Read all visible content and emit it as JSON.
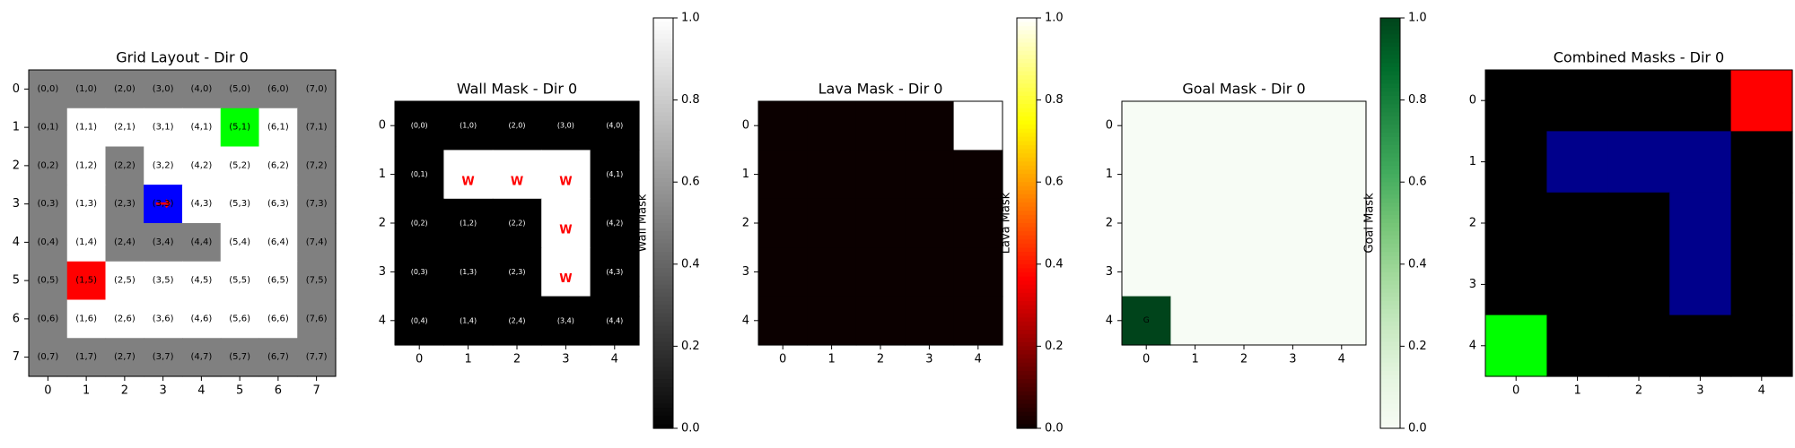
{
  "chart_data": [
    {
      "type": "heatmap",
      "title": "Grid Layout - Dir 0",
      "size": 8,
      "x_ticks": [
        "0",
        "1",
        "2",
        "3",
        "4",
        "5",
        "6",
        "7"
      ],
      "y_ticks": [
        "0",
        "1",
        "2",
        "3",
        "4",
        "5",
        "6",
        "7"
      ],
      "cell_labels": [
        [
          "(0,0)",
          "(1,0)",
          "(2,0)",
          "(3,0)",
          "(4,0)",
          "(5,0)",
          "(6,0)",
          "(7,0)"
        ],
        [
          "(0,1)",
          "(1,1)",
          "(2,1)",
          "(3,1)",
          "(4,1)",
          "(5,1)",
          "(6,1)",
          "(7,1)"
        ],
        [
          "(0,2)",
          "(1,2)",
          "(2,2)",
          "(3,2)",
          "(4,2)",
          "(5,2)",
          "(6,2)",
          "(7,2)"
        ],
        [
          "(0,3)",
          "(1,3)",
          "(2,3)",
          "(3,3)",
          "(4,3)",
          "(5,3)",
          "(6,3)",
          "(7,3)"
        ],
        [
          "(0,4)",
          "(1,4)",
          "(2,4)",
          "(3,4)",
          "(4,4)",
          "(5,4)",
          "(6,4)",
          "(7,4)"
        ],
        [
          "(0,5)",
          "(1,5)",
          "(2,5)",
          "(3,5)",
          "(4,5)",
          "(5,5)",
          "(6,5)",
          "(7,5)"
        ],
        [
          "(0,6)",
          "(1,6)",
          "(2,6)",
          "(3,6)",
          "(4,6)",
          "(5,6)",
          "(6,6)",
          "(7,6)"
        ],
        [
          "(0,7)",
          "(1,7)",
          "(2,7)",
          "(3,7)",
          "(4,7)",
          "(5,7)",
          "(6,7)",
          "(7,7)"
        ]
      ],
      "cells": [
        [
          "wall",
          "wall",
          "wall",
          "wall",
          "wall",
          "wall",
          "wall",
          "wall"
        ],
        [
          "wall",
          "empty",
          "empty",
          "empty",
          "empty",
          "goal",
          "empty",
          "wall"
        ],
        [
          "wall",
          "empty",
          "wall",
          "empty",
          "empty",
          "empty",
          "empty",
          "wall"
        ],
        [
          "wall",
          "empty",
          "wall",
          "agent",
          "empty",
          "empty",
          "empty",
          "wall"
        ],
        [
          "wall",
          "empty",
          "wall",
          "wall",
          "wall",
          "empty",
          "empty",
          "wall"
        ],
        [
          "wall",
          "lava",
          "empty",
          "empty",
          "empty",
          "empty",
          "empty",
          "wall"
        ],
        [
          "wall",
          "empty",
          "empty",
          "empty",
          "empty",
          "empty",
          "empty",
          "wall"
        ],
        [
          "wall",
          "wall",
          "wall",
          "wall",
          "wall",
          "wall",
          "wall",
          "wall"
        ]
      ],
      "agent": {
        "x": 3,
        "y": 3,
        "glyph": "→"
      },
      "colors": {
        "wall": "#808080",
        "empty": "#ffffff",
        "goal": "#00ff00",
        "lava": "#ff0000",
        "agent": "#0000ff",
        "arrow": "#ff0000"
      }
    },
    {
      "type": "heatmap",
      "title": "Wall Mask - Dir 0",
      "size": 5,
      "x_ticks": [
        "0",
        "1",
        "2",
        "3",
        "4"
      ],
      "y_ticks": [
        "0",
        "1",
        "2",
        "3",
        "4"
      ],
      "values": [
        [
          0,
          0,
          0,
          0,
          0
        ],
        [
          0,
          1,
          1,
          1,
          0
        ],
        [
          0,
          0,
          0,
          1,
          0
        ],
        [
          0,
          0,
          0,
          1,
          0
        ],
        [
          0,
          0,
          0,
          0,
          0
        ]
      ],
      "cell_labels": [
        [
          "(0,0)",
          "(1,0)",
          "(2,0)",
          "(3,0)",
          "(4,0)"
        ],
        [
          "(0,1)",
          "W",
          "W",
          "W",
          "(4,1)"
        ],
        [
          "(0,2)",
          "(1,2)",
          "(2,2)",
          "W",
          "(4,2)"
        ],
        [
          "(0,3)",
          "(1,3)",
          "(2,3)",
          "W",
          "(4,3)"
        ],
        [
          "(0,4)",
          "(1,4)",
          "(2,4)",
          "(3,4)",
          "(4,4)"
        ]
      ],
      "colormap": "gray",
      "vmin": 0,
      "vmax": 1,
      "colorbar": {
        "label": "Wall Mask",
        "ticks": [
          "0.0",
          "0.2",
          "0.4",
          "0.6",
          "0.8",
          "1.0"
        ]
      }
    },
    {
      "type": "heatmap",
      "title": "Lava Mask - Dir 0",
      "size": 5,
      "x_ticks": [
        "0",
        "1",
        "2",
        "3",
        "4"
      ],
      "y_ticks": [
        "0",
        "1",
        "2",
        "3",
        "4"
      ],
      "values": [
        [
          0,
          0,
          0,
          0,
          1
        ],
        [
          0,
          0,
          0,
          0,
          0
        ],
        [
          0,
          0,
          0,
          0,
          0
        ],
        [
          0,
          0,
          0,
          0,
          0
        ],
        [
          0,
          0,
          0,
          0,
          0
        ]
      ],
      "colormap": "hot",
      "vmin": 0,
      "vmax": 1,
      "colorbar": {
        "label": "Lava Mask",
        "ticks": [
          "0.0",
          "0.2",
          "0.4",
          "0.6",
          "0.8",
          "1.0"
        ]
      }
    },
    {
      "type": "heatmap",
      "title": "Goal Mask - Dir 0",
      "size": 5,
      "x_ticks": [
        "0",
        "1",
        "2",
        "3",
        "4"
      ],
      "y_ticks": [
        "0",
        "1",
        "2",
        "3",
        "4"
      ],
      "values": [
        [
          0,
          0,
          0,
          0,
          0
        ],
        [
          0,
          0,
          0,
          0,
          0
        ],
        [
          0,
          0,
          0,
          0,
          0
        ],
        [
          0,
          0,
          0,
          0,
          0
        ],
        [
          1,
          0,
          0,
          0,
          0
        ]
      ],
      "cell_labels": [
        [
          "",
          "",
          "",
          "",
          ""
        ],
        [
          "",
          "",
          "",
          "",
          ""
        ],
        [
          "",
          "",
          "",
          "",
          ""
        ],
        [
          "",
          "",
          "",
          "",
          ""
        ],
        [
          "G",
          "",
          "",
          "",
          ""
        ]
      ],
      "colormap": "greens",
      "vmin": 0,
      "vmax": 1,
      "colorbar": {
        "label": "Goal Mask",
        "ticks": [
          "0.0",
          "0.2",
          "0.4",
          "0.6",
          "0.8",
          "1.0"
        ]
      }
    },
    {
      "type": "heatmap",
      "title": "Combined Masks - Dir 0",
      "size": 5,
      "x_ticks": [
        "0",
        "1",
        "2",
        "3",
        "4"
      ],
      "y_ticks": [
        "0",
        "1",
        "2",
        "3",
        "4"
      ],
      "cells": [
        [
          "none",
          "none",
          "none",
          "none",
          "lava"
        ],
        [
          "none",
          "wall",
          "wall",
          "wall",
          "none"
        ],
        [
          "none",
          "none",
          "none",
          "wall",
          "none"
        ],
        [
          "none",
          "none",
          "none",
          "wall",
          "none"
        ],
        [
          "goal",
          "none",
          "none",
          "none",
          "none"
        ]
      ],
      "colors": {
        "none": "#000000",
        "wall": "#00008b",
        "lava": "#ff0000",
        "goal": "#00ff00"
      }
    }
  ]
}
